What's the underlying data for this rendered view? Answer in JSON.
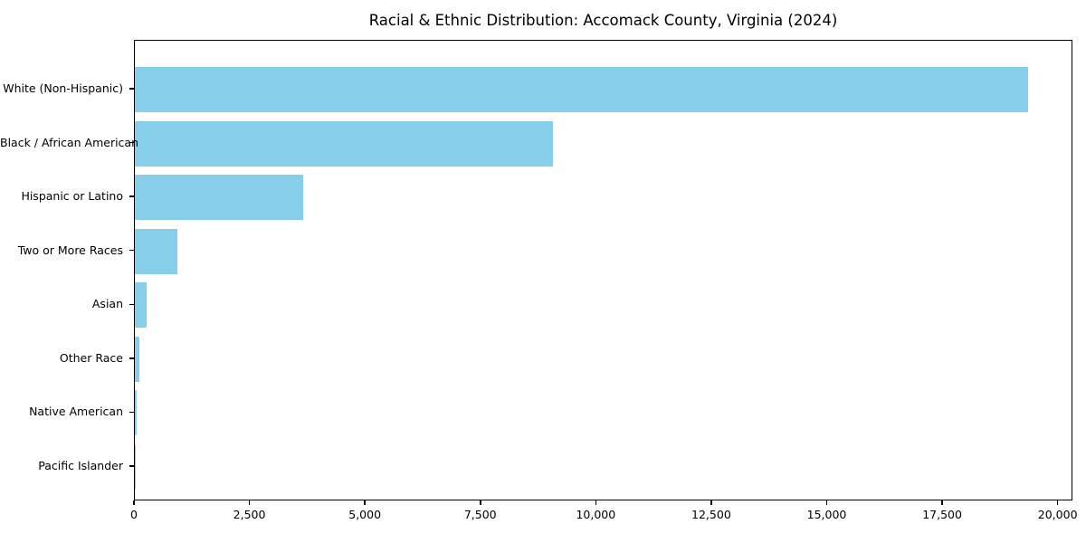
{
  "chart_data": {
    "type": "bar",
    "orientation": "horizontal",
    "title": "Racial & Ethnic Distribution: Accomack County, Virginia (2024)",
    "categories": [
      "White (Non-Hispanic)",
      "Black / African American",
      "Hispanic or Latino",
      "Two or More Races",
      "Asian",
      "Other Race",
      "Native American",
      "Pacific Islander"
    ],
    "values": [
      19350,
      9050,
      3650,
      920,
      260,
      100,
      40,
      10
    ],
    "xlabel": "",
    "ylabel": "",
    "xlim": [
      0,
      20320
    ],
    "x_ticks": [
      0,
      2500,
      5000,
      7500,
      10000,
      12500,
      15000,
      17500,
      20000
    ],
    "x_tick_labels": [
      "0",
      "2,500",
      "5,000",
      "7,500",
      "10,000",
      "12,500",
      "15,000",
      "17,500",
      "20,000"
    ],
    "grid": false,
    "legend": null,
    "colors": {
      "bar": "#87CEEB",
      "axis": "#000000",
      "text": "#000000",
      "background": "#FFFFFF"
    }
  }
}
